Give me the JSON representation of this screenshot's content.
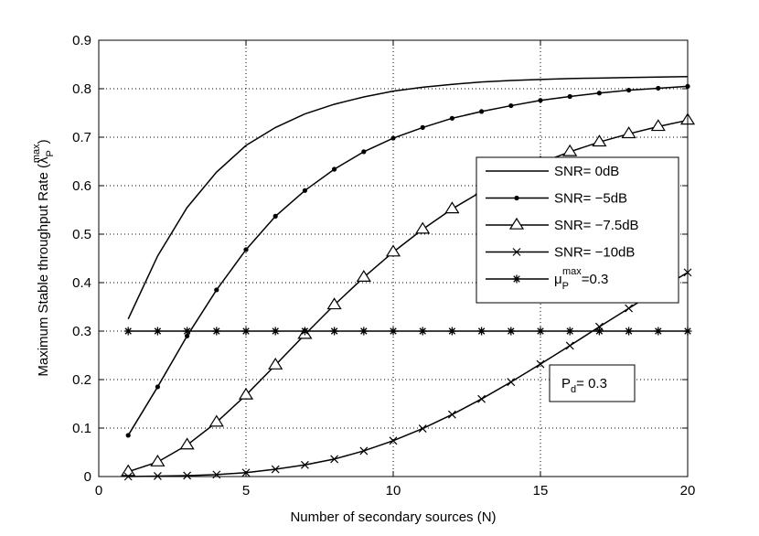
{
  "chart_data": {
    "type": "line",
    "xlabel": "Number of secondary sources (N)",
    "ylabel": "Maximum Stable throughput Rate (λ",
    "ylabel_sub": "P",
    "ylabel_sup": "max",
    "ylabel_suffix": ")",
    "xlim": [
      0,
      20
    ],
    "ylim": [
      0,
      0.9
    ],
    "xticks": [
      0,
      5,
      10,
      15,
      20
    ],
    "xtick_labels": [
      "0",
      "5",
      "10",
      "15",
      "20"
    ],
    "yticks": [
      0,
      0.1,
      0.2,
      0.3,
      0.4,
      0.5,
      0.6,
      0.7,
      0.8,
      0.9
    ],
    "ytick_labels": [
      "0",
      "0.1",
      "0.2",
      "0.3",
      "0.4",
      "0.5",
      "0.6",
      "0.7",
      "0.8",
      "0.9"
    ],
    "grid": true,
    "legend_position": "center-right",
    "x": [
      1,
      2,
      3,
      4,
      5,
      6,
      7,
      8,
      9,
      10,
      11,
      12,
      13,
      14,
      15,
      16,
      17,
      18,
      19,
      20
    ],
    "series": [
      {
        "name": "SNR= 0dB",
        "marker": "none",
        "values": [
          0.325,
          0.455,
          0.555,
          0.628,
          0.683,
          0.72,
          0.748,
          0.768,
          0.783,
          0.795,
          0.803,
          0.809,
          0.814,
          0.817,
          0.819,
          0.821,
          0.822,
          0.823,
          0.824,
          0.825
        ]
      },
      {
        "name": "SNR= −5dB",
        "marker": "dot",
        "values": [
          0.085,
          0.185,
          0.29,
          0.385,
          0.468,
          0.537,
          0.59,
          0.634,
          0.67,
          0.698,
          0.72,
          0.739,
          0.753,
          0.765,
          0.776,
          0.784,
          0.791,
          0.797,
          0.801,
          0.805
        ]
      },
      {
        "name": "SNR= −7.5dB",
        "marker": "triangle",
        "values": [
          0.01,
          0.03,
          0.065,
          0.112,
          0.168,
          0.23,
          0.293,
          0.354,
          0.411,
          0.463,
          0.51,
          0.552,
          0.588,
          0.62,
          0.647,
          0.67,
          0.69,
          0.707,
          0.722,
          0.735
        ]
      },
      {
        "name": "SNR= −10dB",
        "marker": "x",
        "values": [
          0.0,
          0.001,
          0.002,
          0.004,
          0.008,
          0.015,
          0.024,
          0.036,
          0.053,
          0.074,
          0.099,
          0.128,
          0.16,
          0.195,
          0.232,
          0.27,
          0.309,
          0.347,
          0.385,
          0.421
        ]
      },
      {
        "name": "μ",
        "name_sub": "P",
        "name_sup": "max",
        "name_suffix": "=0.3",
        "marker": "star",
        "values": [
          0.3,
          0.3,
          0.3,
          0.3,
          0.3,
          0.3,
          0.3,
          0.3,
          0.3,
          0.3,
          0.3,
          0.3,
          0.3,
          0.3,
          0.3,
          0.3,
          0.3,
          0.3,
          0.3,
          0.3
        ]
      }
    ],
    "annotation": {
      "main": "P",
      "sub": "d",
      "suffix": "= 0.3"
    }
  }
}
